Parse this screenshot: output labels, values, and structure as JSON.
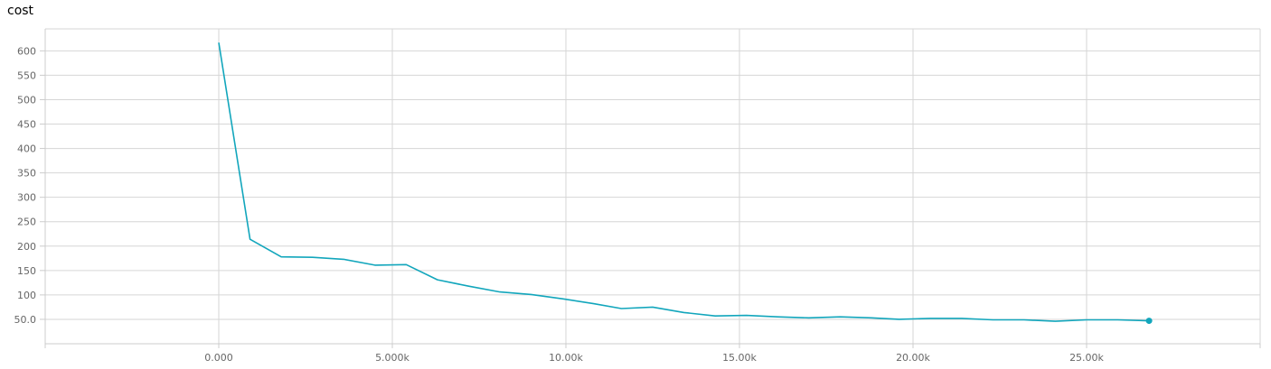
{
  "chart_data": {
    "type": "line",
    "title": "cost",
    "xlabel": "",
    "ylabel": "",
    "xlim": [
      -5000,
      30000
    ],
    "ylim": [
      0,
      645
    ],
    "x_tick_values": [
      0,
      5000,
      10000,
      15000,
      20000,
      25000
    ],
    "x_tick_labels": [
      "0.000",
      "5.000k",
      "10.00k",
      "15.00k",
      "20.00k",
      "25.00k"
    ],
    "y_tick_values": [
      50,
      100,
      150,
      200,
      250,
      300,
      350,
      400,
      450,
      500,
      550,
      600
    ],
    "y_tick_labels": [
      "50.0",
      "100",
      "150",
      "200",
      "250",
      "300",
      "350",
      "400",
      "450",
      "500",
      "550",
      "600"
    ],
    "grid": true,
    "series": [
      {
        "color": "#12a6bc",
        "x": [
          0,
          900,
          1800,
          2700,
          3600,
          4500,
          5400,
          6300,
          7200,
          8100,
          9000,
          9900,
          10800,
          11600,
          12500,
          13400,
          14300,
          15200,
          16100,
          17000,
          17900,
          18800,
          19600,
          20500,
          21400,
          22300,
          23200,
          24100,
          25000,
          25900,
          26800
        ],
        "y": [
          617,
          214,
          178,
          177,
          173,
          161,
          162,
          131,
          118,
          106,
          101,
          92,
          82,
          72,
          75,
          64,
          57,
          58,
          55,
          53,
          55,
          53,
          50,
          52,
          52,
          49,
          49,
          46,
          49,
          49,
          47
        ]
      }
    ]
  }
}
